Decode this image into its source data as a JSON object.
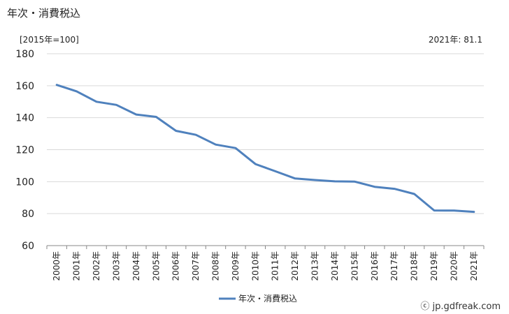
{
  "page": {
    "title": "年次・消費税込",
    "unit_label": "[2015年=100]",
    "latest_label": "2021年: 81.1",
    "credit": "ⓒ jp.gdfreak.com"
  },
  "colors": {
    "line": "#4f81bd",
    "grid": "#d9d9d9",
    "axis": "#888888"
  },
  "chart_data": {
    "type": "line",
    "categories": [
      "2000年",
      "2001年",
      "2002年",
      "2003年",
      "2004年",
      "2005年",
      "2006年",
      "2007年",
      "2008年",
      "2009年",
      "2010年",
      "2011年",
      "2012年",
      "2013年",
      "2014年",
      "2015年",
      "2016年",
      "2017年",
      "2018年",
      "2019年",
      "2020年",
      "2021年"
    ],
    "series": [
      {
        "name": "年次・消費税込",
        "values": [
          160.5,
          156.5,
          150.0,
          148.0,
          142.0,
          140.5,
          131.8,
          129.3,
          123.2,
          121.0,
          111.0,
          106.5,
          102.0,
          101.0,
          100.2,
          100.0,
          96.8,
          95.5,
          92.3,
          82.0,
          81.9,
          81.1
        ]
      }
    ],
    "ylim": [
      60,
      180
    ],
    "yticks": [
      "60",
      "80",
      "100",
      "120",
      "140",
      "160",
      "180"
    ],
    "grid": true,
    "legend": "bottom-center"
  }
}
